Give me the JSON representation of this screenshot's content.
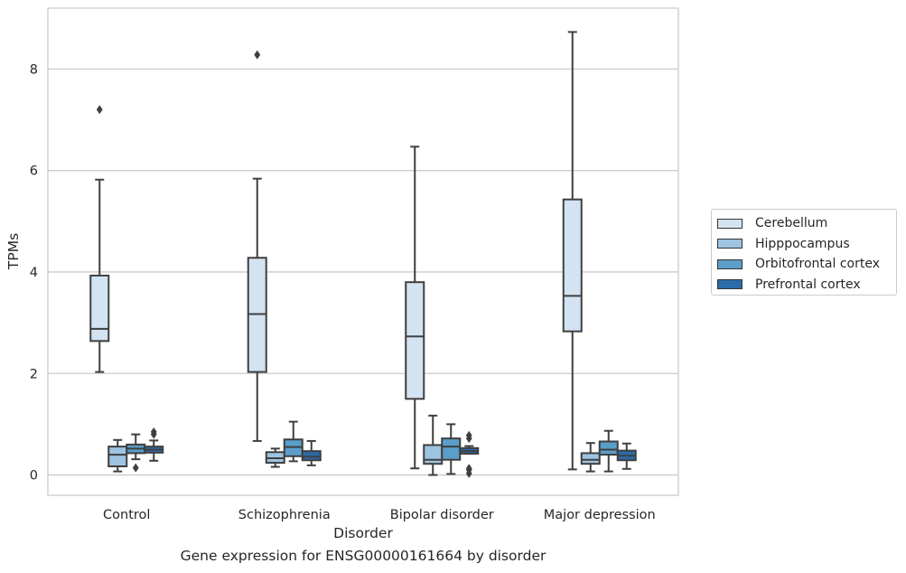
{
  "chart_data": {
    "type": "box",
    "title": "Gene expression for ENSG00000161664 by disorder",
    "xlabel": "Disorder",
    "ylabel": "TPMs",
    "ylim": [
      -0.4,
      9.2
    ],
    "yticks": [
      0,
      2,
      4,
      6,
      8
    ],
    "grid": "horizontal",
    "legend_position": "right",
    "categories": [
      "Control",
      "Schizophrenia",
      "Bipolar disorder",
      "Major depression"
    ],
    "series": [
      {
        "name": "Cerebellum",
        "color": "#d3e3f2",
        "boxes": [
          {
            "whisker_low": 2.03,
            "q1": 2.64,
            "median": 2.88,
            "q3": 3.93,
            "whisker_high": 5.82,
            "outliers": [
              7.2
            ]
          },
          {
            "whisker_low": 0.67,
            "q1": 2.03,
            "median": 3.17,
            "q3": 4.28,
            "whisker_high": 5.84,
            "outliers": [
              8.28
            ]
          },
          {
            "whisker_low": 0.13,
            "q1": 1.5,
            "median": 2.73,
            "q3": 3.8,
            "whisker_high": 6.47,
            "outliers": []
          },
          {
            "whisker_low": 0.11,
            "q1": 2.83,
            "median": 3.53,
            "q3": 5.43,
            "whisker_high": 8.73,
            "outliers": []
          }
        ]
      },
      {
        "name": "Hipppocampus",
        "color": "#9dc4e0",
        "boxes": [
          {
            "whisker_low": 0.07,
            "q1": 0.17,
            "median": 0.4,
            "q3": 0.56,
            "whisker_high": 0.69,
            "outliers": []
          },
          {
            "whisker_low": 0.16,
            "q1": 0.24,
            "median": 0.33,
            "q3": 0.45,
            "whisker_high": 0.52,
            "outliers": []
          },
          {
            "whisker_low": 0.0,
            "q1": 0.22,
            "median": 0.3,
            "q3": 0.59,
            "whisker_high": 1.17,
            "outliers": []
          },
          {
            "whisker_low": 0.07,
            "q1": 0.22,
            "median": 0.3,
            "q3": 0.43,
            "whisker_high": 0.63,
            "outliers": []
          }
        ]
      },
      {
        "name": "Orbitofrontal cortex",
        "color": "#5a9ec9",
        "boxes": [
          {
            "whisker_low": 0.31,
            "q1": 0.43,
            "median": 0.52,
            "q3": 0.6,
            "whisker_high": 0.8,
            "outliers": [
              0.14
            ]
          },
          {
            "whisker_low": 0.27,
            "q1": 0.37,
            "median": 0.55,
            "q3": 0.7,
            "whisker_high": 1.05,
            "outliers": []
          },
          {
            "whisker_low": 0.02,
            "q1": 0.3,
            "median": 0.56,
            "q3": 0.72,
            "whisker_high": 1.0,
            "outliers": []
          },
          {
            "whisker_low": 0.07,
            "q1": 0.4,
            "median": 0.5,
            "q3": 0.66,
            "whisker_high": 0.87,
            "outliers": []
          }
        ]
      },
      {
        "name": "Prefrontal cortex",
        "color": "#2b6ba9",
        "boxes": [
          {
            "whisker_low": 0.28,
            "q1": 0.44,
            "median": 0.5,
            "q3": 0.56,
            "whisker_high": 0.68,
            "outliers": [
              0.8,
              0.85
            ]
          },
          {
            "whisker_low": 0.19,
            "q1": 0.29,
            "median": 0.36,
            "q3": 0.47,
            "whisker_high": 0.67,
            "outliers": []
          },
          {
            "whisker_low": 0.42,
            "q1": 0.42,
            "median": 0.47,
            "q3": 0.53,
            "whisker_high": 0.57,
            "outliers": [
              0.03,
              0.1,
              0.13,
              0.72,
              0.78
            ]
          },
          {
            "whisker_low": 0.12,
            "q1": 0.29,
            "median": 0.38,
            "q3": 0.48,
            "whisker_high": 0.62,
            "outliers": []
          }
        ]
      }
    ]
  }
}
